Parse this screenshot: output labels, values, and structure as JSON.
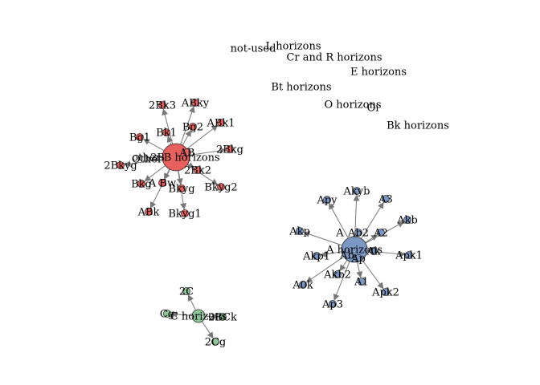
{
  "graph": {
    "colors": {
      "red_group": "#e8605e",
      "blue_group": "#7b97c4",
      "green_group": "#8ec79a",
      "edge": "#777777",
      "label": "#000000",
      "node_stroke": "#2a2a2a"
    },
    "isolated_labels": [
      {
        "id": "not_used",
        "label": "not-used"
      },
      {
        "id": "l_hor",
        "label": "L horizons"
      },
      {
        "id": "cr_r",
        "label": "Cr and R horizons"
      },
      {
        "id": "e_hor",
        "label": "E horizons"
      },
      {
        "id": "bt_hor",
        "label": "Bt horizons"
      },
      {
        "id": "o_hor",
        "label": "O horizons"
      },
      {
        "id": "oi",
        "label": "Oi"
      },
      {
        "id": "bk_hor",
        "label": "Bk horizons"
      }
    ],
    "clusters": [
      {
        "hub": {
          "id": "other_b",
          "label": "other B horizons",
          "group": "red_group"
        },
        "leaves": [
          {
            "id": "2Bk3",
            "label": "2Bk3"
          },
          {
            "id": "ABky",
            "label": "ABky"
          },
          {
            "id": "Bg2",
            "label": "Bg2"
          },
          {
            "id": "ABk1",
            "label": "ABk1"
          },
          {
            "id": "Bg1",
            "label": "Bg1"
          },
          {
            "id": "Bk1",
            "label": "Bk1"
          },
          {
            "id": "2Bkg",
            "label": "2Bkg"
          },
          {
            "id": "AB",
            "label": "AB"
          },
          {
            "id": "2Bkyg",
            "label": "2Bkyg"
          },
          {
            "id": "2Bk2",
            "label": "2Bk2"
          },
          {
            "id": "Bkg",
            "label": "Bkg"
          },
          {
            "id": "ABw",
            "label": "A Bw"
          },
          {
            "id": "Bkyg",
            "label": "Bkyg"
          },
          {
            "id": "Bkyg2",
            "label": "Bkyg2"
          },
          {
            "id": "ABk",
            "label": "ABk"
          },
          {
            "id": "Bkyg1",
            "label": "Bkyg1"
          }
        ],
        "overlap_labels": [
          {
            "id": "other_tag",
            "label": "Other"
          },
          {
            "id": "2B_tag",
            "label": "2B"
          }
        ]
      },
      {
        "hub": {
          "id": "a_hor",
          "label": "A horizons",
          "group": "blue_group"
        },
        "leaves": [
          {
            "id": "Akyb",
            "label": "Akyb"
          },
          {
            "id": "Apy",
            "label": "Apy"
          },
          {
            "id": "A3",
            "label": "A3"
          },
          {
            "id": "Akb",
            "label": "Akb"
          },
          {
            "id": "Akp",
            "label": "Akp"
          },
          {
            "id": "Ab2",
            "label": "Ab2"
          },
          {
            "id": "A2",
            "label": "A2"
          },
          {
            "id": "Apk1",
            "label": "Apk1"
          },
          {
            "id": "Akp1",
            "label": "Akp1"
          },
          {
            "id": "Ak",
            "label": "Ak"
          },
          {
            "id": "Akb2",
            "label": "Akb2"
          },
          {
            "id": "A0k",
            "label": "A0k"
          },
          {
            "id": "A1",
            "label": "A1"
          },
          {
            "id": "Apk2",
            "label": "Apk2"
          },
          {
            "id": "Ap3",
            "label": "Ap3"
          },
          {
            "id": "Ap",
            "label": "Ap"
          }
        ],
        "overlap_labels": [
          {
            "id": "a_small",
            "label": "A"
          },
          {
            "id": "a_ab",
            "label": "Ab"
          }
        ]
      },
      {
        "hub": {
          "id": "c_hor",
          "label": "C horizons",
          "group": "green_group"
        },
        "leaves": [
          {
            "id": "2C",
            "label": "2C"
          },
          {
            "id": "Cg",
            "label": "Cg"
          },
          {
            "id": "2Ck",
            "label": "2BCk"
          },
          {
            "id": "2Cg",
            "label": "2Cg"
          }
        ],
        "overlap_labels": []
      }
    ]
  }
}
